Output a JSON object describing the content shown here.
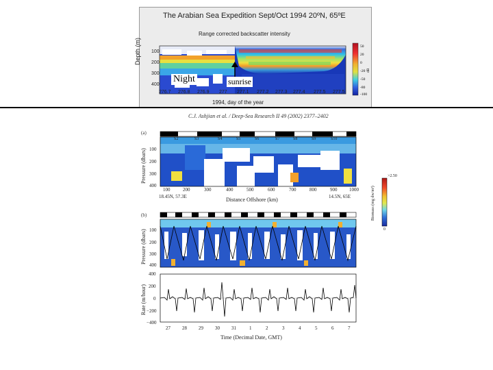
{
  "top_figure": {
    "title": "The Arabian Sea Expedition     Sept/Oct 1994  20ºN, 65ºE",
    "subtitle": "Range corrected backscatter intensity",
    "ylabel": "Depth (m)",
    "yticks": [
      "100",
      "200",
      "300",
      "400"
    ],
    "xticks": [
      "276.7",
      "276.8",
      "276.9",
      "277",
      "277.1",
      "277.2",
      "277.3",
      "277.4",
      "277.5",
      "277.5"
    ],
    "xlabel": "1994, day of the year",
    "colorbar_ticks": [
      "50",
      "20",
      "0",
      "-20",
      "-50",
      "-80",
      "-100"
    ],
    "colorbar_unit": "dB",
    "annotation_night": "Night",
    "annotation_sunrise": "sunrise"
  },
  "citation": "C.J. Ashjian et al. / Deep-Sea Research II 49 (2002) 2377–2402",
  "panel_a": {
    "letter": "(a)",
    "stations": [
      "S2",
      "S3",
      "S4",
      "S5",
      "S6",
      "S7",
      "S8",
      "S9",
      "S10"
    ],
    "ylabel": "Pressure (dbars)",
    "yticks": [
      "100",
      "200",
      "300",
      "400"
    ],
    "xticks": [
      "100",
      "200",
      "300",
      "400",
      "500",
      "600",
      "700",
      "800",
      "900",
      "1000"
    ],
    "xlabel": "Distance Offshore (km)",
    "left_coord": "18.45N, 57.3E",
    "right_coord": "14.5N, 65E"
  },
  "colorbar": {
    "label": "Biomass (mg dw/m³)",
    "top": ">2.50",
    "bottom": "0"
  },
  "panel_b": {
    "letter": "(b)",
    "ylabel": "Pressure (dbars)",
    "yticks": [
      "100",
      "200",
      "300",
      "400"
    ]
  },
  "panel_c": {
    "ylabel": "Rate (m/hour)",
    "yticks": [
      "400",
      "200",
      "0",
      "−200",
      "−400"
    ],
    "xticks": [
      "27",
      "28",
      "29",
      "30",
      "31",
      "1",
      "2",
      "3",
      "4",
      "5",
      "6",
      "7"
    ],
    "xlabel": "Time (Decimal Date, GMT)"
  }
}
